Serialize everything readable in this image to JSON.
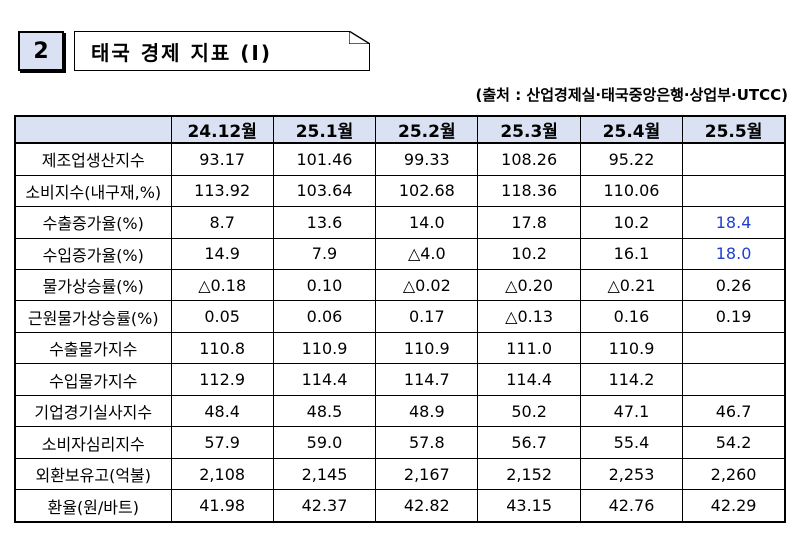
{
  "section": {
    "number": "2",
    "title": "태국 경제 지표 (Ⅰ)"
  },
  "source_note": "(출처 : 산업경제실·태국중앙은행·상업부·UTCC)",
  "table": {
    "corner_label": "",
    "columns": [
      "24.12월",
      "25.1월",
      "25.2월",
      "25.3월",
      "25.4월",
      "25.5월"
    ],
    "rows": [
      {
        "label": "제조업생산지수",
        "values": [
          "93.17",
          "101.46",
          "99.33",
          "108.26",
          "95.22",
          ""
        ]
      },
      {
        "label": "소비지수(내구재,%)",
        "values": [
          "113.92",
          "103.64",
          "102.68",
          "118.36",
          "110.06",
          ""
        ]
      },
      {
        "label": "수출증가율(%)",
        "values": [
          "8.7",
          "13.6",
          "14.0",
          "17.8",
          "10.2",
          "18.4"
        ]
      },
      {
        "label": "수입증가율(%)",
        "values": [
          "14.9",
          "7.9",
          "△4.0",
          "10.2",
          "16.1",
          "18.0"
        ]
      },
      {
        "label": "물가상승률(%)",
        "values": [
          "△0.18",
          "0.10",
          "△0.02",
          "△0.20",
          "△0.21",
          "0.26"
        ]
      },
      {
        "label": "근원물가상승률(%)",
        "values": [
          "0.05",
          "0.06",
          "0.17",
          "△0.13",
          "0.16",
          "0.19"
        ]
      },
      {
        "label": "수출물가지수",
        "values": [
          "110.8",
          "110.9",
          "110.9",
          "111.0",
          "110.9",
          ""
        ]
      },
      {
        "label": "수입물가지수",
        "values": [
          "112.9",
          "114.4",
          "114.7",
          "114.4",
          "114.2",
          ""
        ]
      },
      {
        "label": "기업경기실사지수",
        "values": [
          "48.4",
          "48.5",
          "48.9",
          "50.2",
          "47.1",
          "46.7"
        ]
      },
      {
        "label": "소비자심리지수",
        "values": [
          "57.9",
          "59.0",
          "57.8",
          "56.7",
          "55.4",
          "54.2"
        ]
      },
      {
        "label": "외환보유고(억불)",
        "values": [
          "2,108",
          "2,145",
          "2,167",
          "2,152",
          "2,253",
          "2,260"
        ]
      },
      {
        "label": "환율(원/바트)",
        "values": [
          "41.98",
          "42.37",
          "42.82",
          "43.15",
          "42.76",
          "42.29"
        ]
      }
    ]
  },
  "colors": {
    "header_bg": "#d9e1f2",
    "highlight_text": "#1f3fd0"
  }
}
